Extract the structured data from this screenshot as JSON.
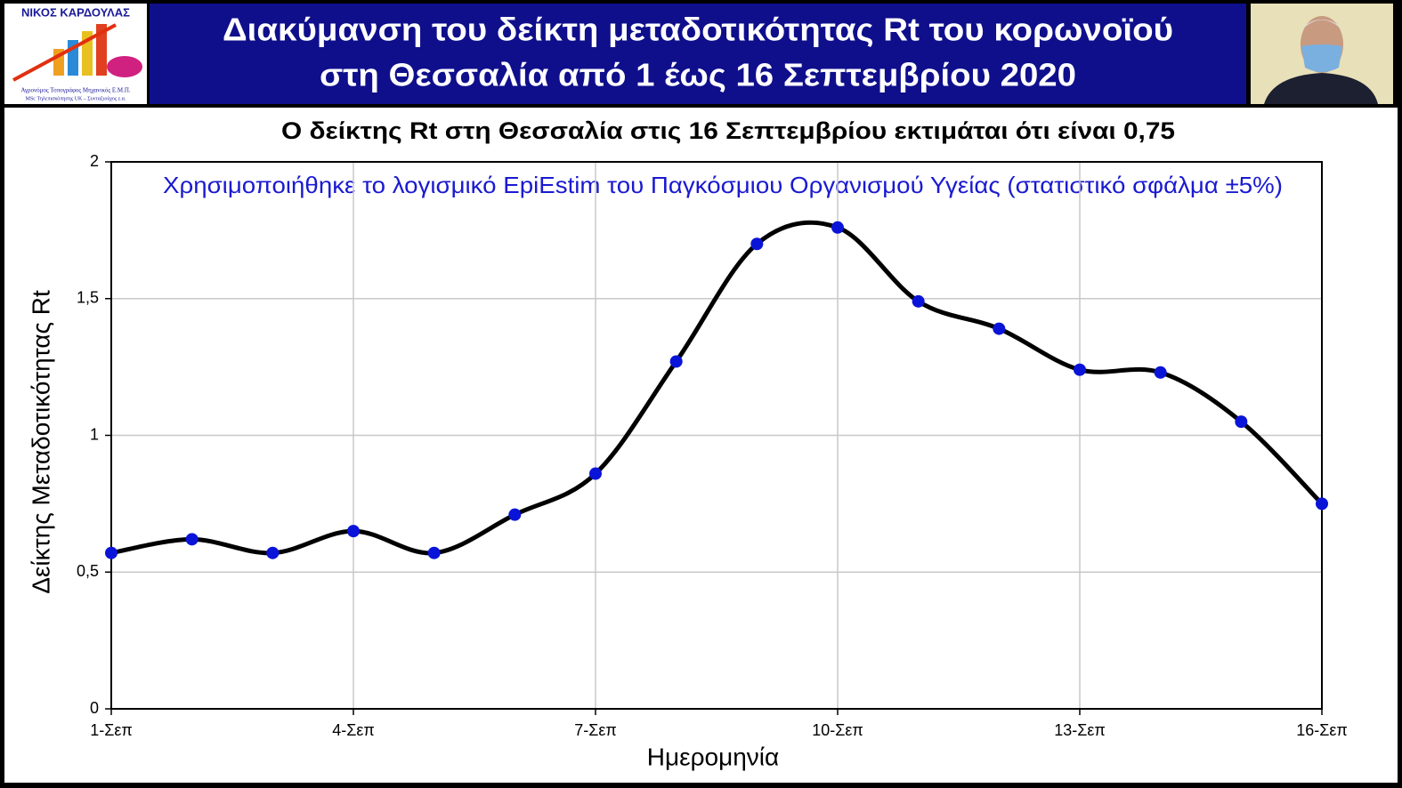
{
  "logo": {
    "name": "ΝΙΚΟΣ ΚΑΡΔΟΥΛΑΣ",
    "lines": [
      "Αγρονόμος Τοπογράφος Μηχανικός Ε.Μ.Π.",
      "MSc Τηλεπισκόπησης UK – Συνταξιούχος ε.α."
    ]
  },
  "chart_data": {
    "type": "line",
    "title": [
      "Διακύμανση του δείκτη μεταδοτικότητας Rt του κορωνοϊού",
      "στη Θεσσαλία από 1 έως 16 Σεπτεμβρίου 2020"
    ],
    "subtitle": "Ο δείκτης Rt στη Θεσσαλία στις 16 Σεπτεμβρίου εκτιμάται ότι είναι 0,75",
    "annotation": "Χρησιμοποιήθηκε το λογισμικό EpiEstim του Παγκόσμιου Οργανισμού Υγείας (στατιστικό σφάλμα ±5%)",
    "x_label": "Ημερομηνία",
    "y_label": "Δείκτης Μεταδοτικότητας Rt",
    "categories": [
      "1-Σεπ",
      null,
      null,
      "4-Σεπ",
      null,
      null,
      "7-Σεπ",
      null,
      null,
      "10-Σεπ",
      null,
      null,
      "13-Σεπ",
      null,
      null,
      "16-Σεπ"
    ],
    "values": [
      0.57,
      0.62,
      0.57,
      0.65,
      0.57,
      0.71,
      0.86,
      1.27,
      1.7,
      1.76,
      1.49,
      1.39,
      1.24,
      1.23,
      1.05,
      0.75
    ],
    "color": "#000000",
    "marker_color": "#0a14d8",
    "smooth": true,
    "ylim": [
      0,
      2
    ],
    "yticks": [
      0,
      {
        "value": 0.5,
        "label": "0,5"
      },
      1,
      {
        "value": 1.5,
        "label": "1,5"
      },
      2
    ],
    "grid": true
  }
}
